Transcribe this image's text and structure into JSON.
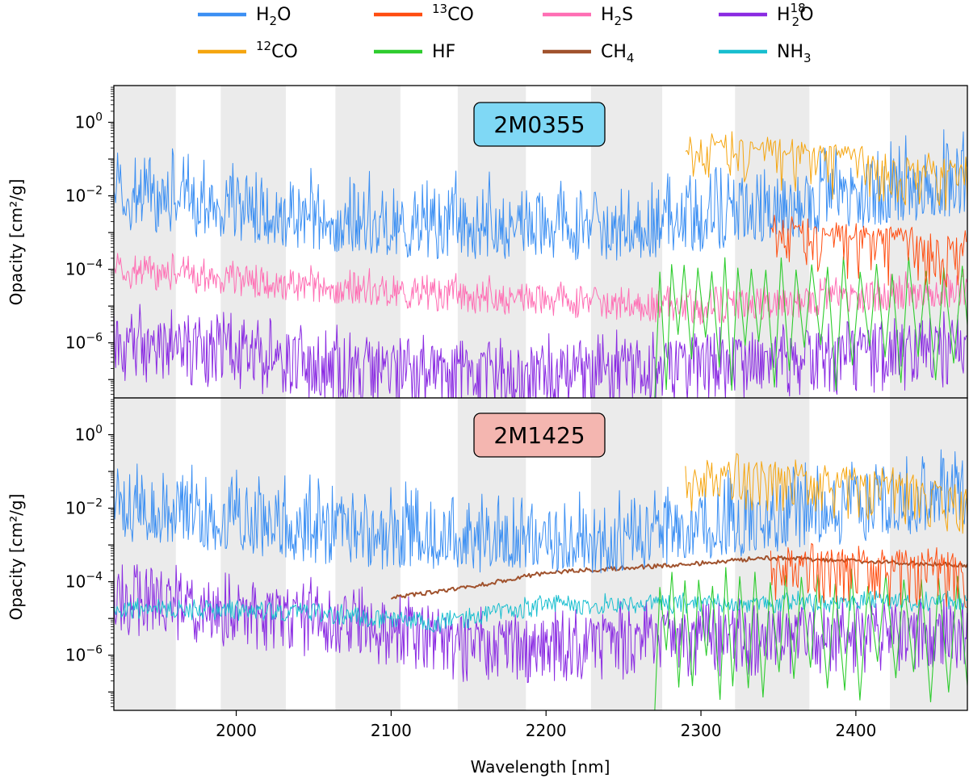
{
  "legend": {
    "placement": "top-center",
    "entries": [
      {
        "id": "h2o",
        "label": "H",
        "sub": "2",
        "sup": "",
        "tail": "O",
        "color": "#3b8ff3"
      },
      {
        "id": "co12",
        "label": "",
        "sub": "",
        "sup": "12",
        "tail": "CO",
        "color": "#f5a50f"
      },
      {
        "id": "co13",
        "label": "",
        "sub": "",
        "sup": "13",
        "tail": "CO",
        "color": "#ff4d10"
      },
      {
        "id": "hf",
        "label": "HF",
        "sub": "",
        "sup": "",
        "tail": "",
        "color": "#2ecc2e"
      },
      {
        "id": "h2s",
        "label": "H",
        "sub": "2",
        "sup": "",
        "tail": "S",
        "color": "#ff6eb4"
      },
      {
        "id": "ch4",
        "label": "CH",
        "sub": "4",
        "sup": "",
        "tail": "",
        "color": "#a0522d"
      },
      {
        "id": "h218o",
        "label": "H",
        "sub": "2",
        "sup": "18",
        "tail": "O",
        "color": "#8a2be2"
      },
      {
        "id": "nh3",
        "label": "NH",
        "sub": "3",
        "sup": "",
        "tail": "",
        "color": "#17becf"
      }
    ]
  },
  "colors": {
    "h2o": "#3b8ff3",
    "co12": "#f5a50f",
    "co13": "#ff4d10",
    "hf": "#2ecc2e",
    "h2s": "#ff6eb4",
    "ch4": "#a0522d",
    "h218o": "#8a2be2",
    "nh3": "#17becf",
    "gap_shade": "#ebebeb"
  },
  "chart_data": [
    {
      "type": "line",
      "panel_label": "2M0355",
      "label_color": "#7fd8f5",
      "xlabel": "",
      "ylabel": "Opacity [cm²/g]",
      "xlim": [
        1921,
        2472
      ],
      "ylim_log10": [
        -7.5,
        1.0
      ],
      "yscale": "log",
      "yticks": [
        "10^0",
        "10^-2",
        "10^-4",
        "10^-6"
      ],
      "series": [
        {
          "id": "h2o",
          "approx_log10_baseline": [
            [
              1921,
              -2.0
            ],
            [
              2100,
              -2.8
            ],
            [
              2250,
              -2.9
            ],
            [
              2472,
              -1.6
            ]
          ]
        },
        {
          "id": "co12",
          "approx_log10_baseline": [
            [
              2290,
              -0.9
            ],
            [
              2320,
              -0.7
            ],
            [
              2472,
              -1.4
            ]
          ]
        },
        {
          "id": "co13",
          "approx_log10_baseline": [
            [
              2345,
              -3.0
            ],
            [
              2472,
              -3.4
            ]
          ]
        },
        {
          "id": "hf",
          "approx_log10_baseline": [
            [
              2270,
              -4.0
            ],
            [
              2472,
              -4.0
            ]
          ]
        },
        {
          "id": "h2s",
          "approx_log10_baseline": [
            [
              1921,
              -4.0
            ],
            [
              2150,
              -4.7
            ],
            [
              2300,
              -5.0
            ],
            [
              2472,
              -4.5
            ]
          ]
        },
        {
          "id": "h218o",
          "approx_log10_baseline": [
            [
              1921,
              -5.8
            ],
            [
              2150,
              -6.8
            ],
            [
              2472,
              -6.0
            ]
          ]
        }
      ]
    },
    {
      "type": "line",
      "panel_label": "2M1425",
      "label_color": "#f4b6b0",
      "xlabel": "Wavelength [nm]",
      "ylabel": "Opacity [cm²/g]",
      "xlim": [
        1921,
        2472
      ],
      "ylim_log10": [
        -7.5,
        1.0
      ],
      "yscale": "log",
      "xticks": [
        2000,
        2100,
        2200,
        2300,
        2400
      ],
      "yticks": [
        "10^0",
        "10^-2",
        "10^-4",
        "10^-6"
      ],
      "series": [
        {
          "id": "h2o",
          "approx_log10_baseline": [
            [
              1921,
              -2.0
            ],
            [
              2100,
              -2.8
            ],
            [
              2250,
              -2.9
            ],
            [
              2472,
              -1.6
            ]
          ]
        },
        {
          "id": "co12",
          "approx_log10_baseline": [
            [
              2290,
              -1.0
            ],
            [
              2320,
              -0.9
            ],
            [
              2472,
              -1.6
            ]
          ]
        },
        {
          "id": "co13",
          "approx_log10_baseline": [
            [
              2345,
              -3.3
            ],
            [
              2472,
              -3.6
            ]
          ]
        },
        {
          "id": "hf",
          "approx_log10_baseline": [
            [
              2270,
              -4.0
            ],
            [
              2472,
              -4.0
            ]
          ]
        },
        {
          "id": "ch4",
          "approx_log10_baseline": [
            [
              2100,
              -4.45
            ],
            [
              2150,
              -4.15
            ],
            [
              2200,
              -3.75
            ],
            [
              2300,
              -3.5
            ],
            [
              2340,
              -3.35
            ],
            [
              2472,
              -3.55
            ]
          ]
        },
        {
          "id": "h218o",
          "approx_log10_baseline": [
            [
              1921,
              -4.2
            ],
            [
              2100,
              -5.1
            ],
            [
              2150,
              -5.6
            ],
            [
              2300,
              -5.4
            ],
            [
              2472,
              -5.2
            ]
          ]
        },
        {
          "id": "nh3",
          "approx_log10_baseline": [
            [
              1921,
              -4.7
            ],
            [
              2050,
              -4.8
            ],
            [
              2130,
              -5.1
            ],
            [
              2200,
              -4.6
            ],
            [
              2472,
              -4.5
            ]
          ]
        }
      ]
    }
  ],
  "shaded_wavelength_ranges_nm": [
    [
      1921,
      1961
    ],
    [
      1990,
      2032
    ],
    [
      2064,
      2106
    ],
    [
      2143,
      2187
    ],
    [
      2229,
      2275
    ],
    [
      2322,
      2370
    ],
    [
      2422,
      2472
    ]
  ]
}
